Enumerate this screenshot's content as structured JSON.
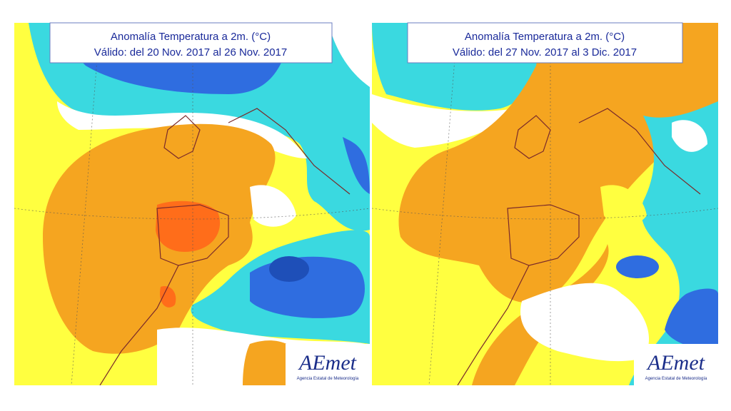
{
  "panels": [
    {
      "title": "Anomalía Temperatura a 2m. (°C)",
      "period": "Válido: del 20 Nov. 2017 al 26 Nov. 2017",
      "logo": "AEmet",
      "logo_subtitle": "Agencia Estatal de Meteorología"
    },
    {
      "title": "Anomalía Temperatura a 2m. (°C)",
      "period": "Válido: del 27 Nov. 2017 al 3 Dic. 2017",
      "logo": "AEmet",
      "logo_subtitle": "Agencia Estatal de Meteorología"
    }
  ]
}
